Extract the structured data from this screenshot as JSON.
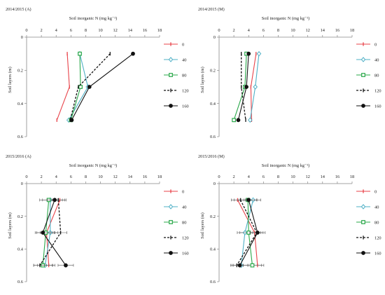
{
  "chart_data": [
    {
      "type": "line",
      "title": "2014/2015 (A)",
      "xlabel": "Soil inorganic N (mg kg⁻¹)",
      "ylabel": "Soil layers (m)",
      "xlim": [
        0,
        18
      ],
      "ylim": [
        0,
        0.6
      ],
      "x_ticks": [
        "0",
        "2",
        "4",
        "6",
        "8",
        "10",
        "12",
        "14",
        "16",
        "18"
      ],
      "y_ticks": [
        "0",
        "0.2",
        "0.4",
        "0.6"
      ],
      "depths": [
        0.1,
        0.3,
        0.5
      ],
      "error_bars": false,
      "series": [
        {
          "name": "0",
          "color": "#e8434a",
          "marker": "dash",
          "dashed": false,
          "values": [
            5.5,
            5.8,
            4.1
          ]
        },
        {
          "name": "40",
          "color": "#4fb0c6",
          "marker": "diamond",
          "dashed": false,
          "values": [
            7.2,
            8.3,
            5.7
          ]
        },
        {
          "name": "80",
          "color": "#2aa84a",
          "marker": "square",
          "dashed": false,
          "values": [
            7.2,
            7.3,
            6.0
          ]
        },
        {
          "name": "120",
          "color": "#111111",
          "marker": "dash",
          "dashed": true,
          "values": [
            11.3,
            7.0,
            5.9
          ]
        },
        {
          "name": "160",
          "color": "#111111",
          "marker": "circle",
          "dashed": false,
          "values": [
            14.4,
            8.5,
            6.1
          ]
        }
      ]
    },
    {
      "type": "line",
      "title": "2014/2015 (M)",
      "xlabel": "Soil inorganic N (mg kg⁻¹)",
      "ylabel": "Soil layers (m)",
      "xlim": [
        0,
        18
      ],
      "ylim": [
        0,
        0.6
      ],
      "x_ticks": [
        "0",
        "2",
        "4",
        "6",
        "8",
        "10",
        "12",
        "14",
        "16",
        "18"
      ],
      "y_ticks": [
        "0",
        "0.2",
        "0.4",
        "0.6"
      ],
      "depths": [
        0.1,
        0.3,
        0.5
      ],
      "error_bars": false,
      "series": [
        {
          "name": "0",
          "color": "#e8434a",
          "marker": "dash",
          "dashed": false,
          "values": [
            5.0,
            4.3,
            4.4
          ]
        },
        {
          "name": "40",
          "color": "#4fb0c6",
          "marker": "diamond",
          "dashed": false,
          "values": [
            5.4,
            4.9,
            4.2
          ]
        },
        {
          "name": "80",
          "color": "#2aa84a",
          "marker": "square",
          "dashed": false,
          "values": [
            3.7,
            3.5,
            2.0
          ]
        },
        {
          "name": "120",
          "color": "#111111",
          "marker": "dash",
          "dashed": true,
          "values": [
            3.0,
            3.0,
            3.6
          ]
        },
        {
          "name": "160",
          "color": "#111111",
          "marker": "circle",
          "dashed": false,
          "values": [
            4.0,
            3.7,
            2.6
          ]
        }
      ]
    },
    {
      "type": "line",
      "title": "2015/2016 (A)",
      "xlabel": "Soil inorganic N (mg kg⁻¹)",
      "ylabel": "Soil layers (m)",
      "xlim": [
        0,
        18
      ],
      "ylim": [
        0,
        0.6
      ],
      "x_ticks": [
        "0",
        "2",
        "4",
        "6",
        "8",
        "10",
        "12",
        "14",
        "16",
        "18"
      ],
      "y_ticks": [
        "0",
        "0.2",
        "0.4",
        "0.6"
      ],
      "depths": [
        0.1,
        0.3,
        0.5
      ],
      "error_bars": true,
      "series": [
        {
          "name": "0",
          "color": "#e8434a",
          "marker": "dash",
          "dashed": false,
          "values": [
            4.5,
            2.7,
            3.0
          ]
        },
        {
          "name": "40",
          "color": "#4fb0c6",
          "marker": "diamond",
          "dashed": false,
          "values": [
            3.2,
            3.2,
            2.5
          ]
        },
        {
          "name": "80",
          "color": "#2aa84a",
          "marker": "square",
          "dashed": false,
          "values": [
            3.0,
            2.6,
            2.2
          ]
        },
        {
          "name": "120",
          "color": "#111111",
          "marker": "dash",
          "dashed": true,
          "values": [
            4.3,
            4.6,
            1.8
          ]
        },
        {
          "name": "160",
          "color": "#111111",
          "marker": "circle",
          "dashed": false,
          "values": [
            3.8,
            2.2,
            5.3
          ]
        }
      ]
    },
    {
      "type": "line",
      "title": "2015/2016 (M)",
      "xlabel": "Soil inorganic N (mg kg⁻¹)",
      "ylabel": "Soil layers (m)",
      "xlim": [
        0,
        18
      ],
      "ylim": [
        0,
        0.6
      ],
      "x_ticks": [
        "0",
        "2",
        "4",
        "6",
        "8",
        "10",
        "12",
        "14",
        "16",
        "18"
      ],
      "y_ticks": [
        "0",
        "0.2",
        "0.4",
        "0.6"
      ],
      "depths": [
        0.1,
        0.3,
        0.5
      ],
      "error_bars": true,
      "series": [
        {
          "name": "0",
          "color": "#e8434a",
          "marker": "dash",
          "dashed": false,
          "values": [
            2.5,
            4.8,
            5.2
          ]
        },
        {
          "name": "40",
          "color": "#4fb0c6",
          "marker": "diamond",
          "dashed": false,
          "values": [
            4.6,
            3.5,
            3.0
          ]
        },
        {
          "name": "80",
          "color": "#2aa84a",
          "marker": "square",
          "dashed": false,
          "values": [
            3.9,
            4.0,
            4.5
          ]
        },
        {
          "name": "120",
          "color": "#111111",
          "marker": "dash",
          "dashed": true,
          "values": [
            2.9,
            5.1,
            2.4
          ]
        },
        {
          "name": "160",
          "color": "#111111",
          "marker": "circle",
          "dashed": false,
          "values": [
            4.0,
            5.2,
            2.8
          ]
        }
      ]
    }
  ]
}
